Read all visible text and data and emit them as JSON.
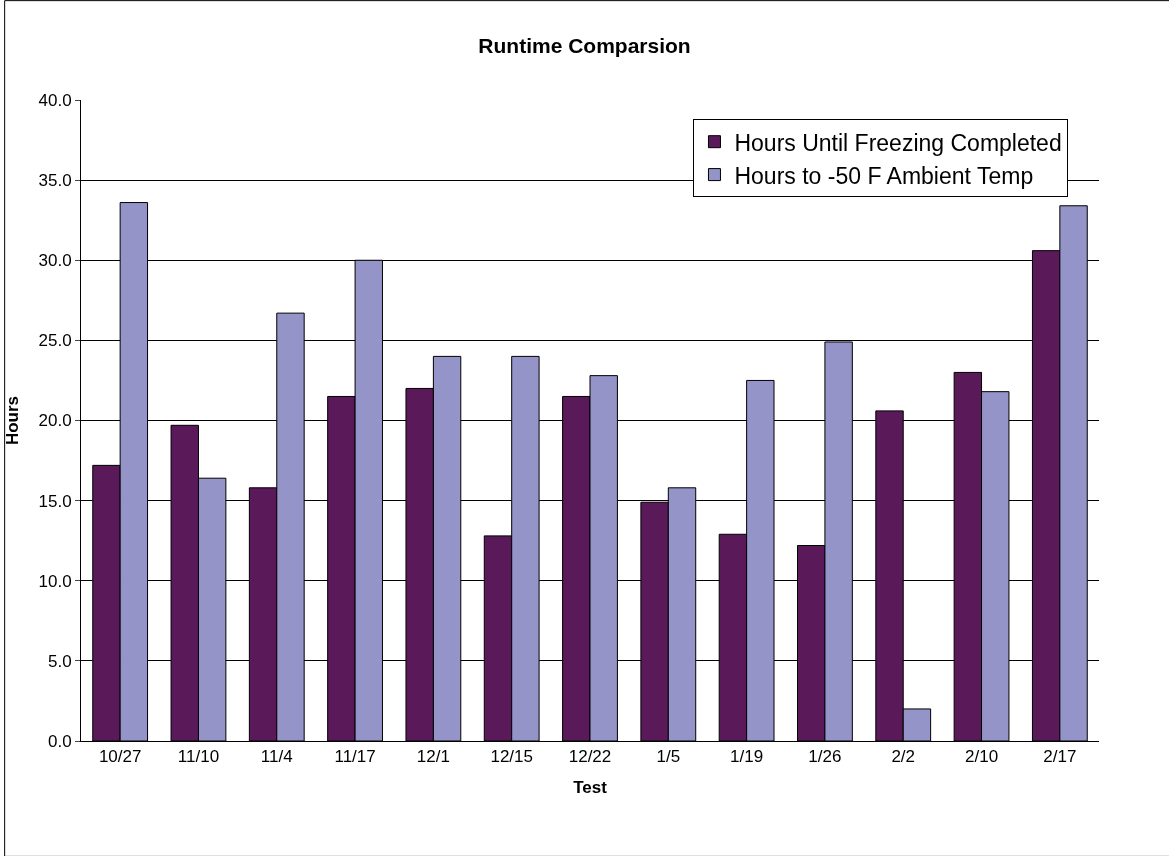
{
  "chart_data": {
    "type": "bar",
    "title": "Runtime Comparsion",
    "xlabel": "Test",
    "ylabel": "Hours",
    "categories": [
      "10/27",
      "11/10",
      "11/4",
      "11/17",
      "12/1",
      "12/15",
      "12/22",
      "1/5",
      "1/19",
      "1/26",
      "2/2",
      "2/10",
      "2/17"
    ],
    "series": [
      {
        "name": "Hours Until Freezing Completed",
        "color": "#5a1a5a",
        "values": [
          17.2,
          19.7,
          15.8,
          21.5,
          22.0,
          12.8,
          21.5,
          14.9,
          12.9,
          12.2,
          20.6,
          23.0,
          30.6
        ]
      },
      {
        "name": "Hours to -50 F Ambient Temp",
        "color": "#9494c8",
        "values": [
          33.6,
          16.4,
          26.7,
          30.0,
          24.0,
          24.0,
          22.8,
          15.8,
          22.5,
          24.9,
          2.0,
          21.8,
          33.4
        ]
      }
    ],
    "ylim": [
      0,
      40
    ],
    "yticks": [
      {
        "value": 0,
        "label": "0.0"
      },
      {
        "value": 5,
        "label": "5.0"
      },
      {
        "value": 10,
        "label": "10.0"
      },
      {
        "value": 15,
        "label": "15.0"
      },
      {
        "value": 20,
        "label": "20.0"
      },
      {
        "value": 25,
        "label": "25.0"
      },
      {
        "value": 30,
        "label": "30.0"
      },
      {
        "value": 35,
        "label": "35.0"
      },
      {
        "value": 40,
        "label": "40.0"
      }
    ],
    "grid": "y",
    "legend": "top right"
  }
}
